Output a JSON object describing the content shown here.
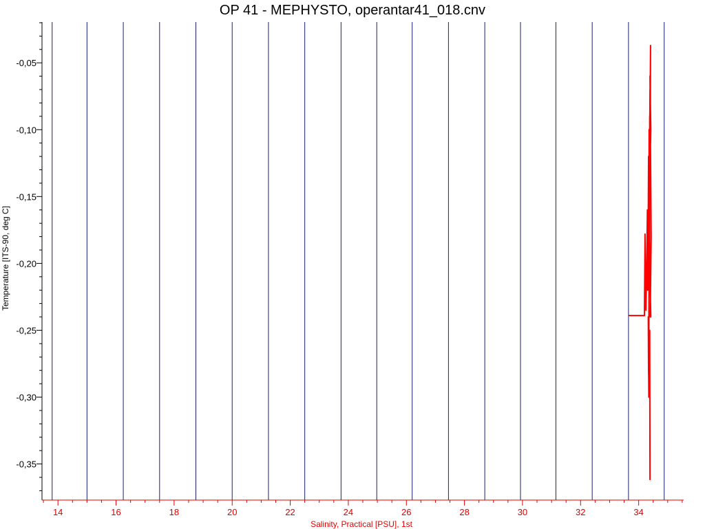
{
  "chart_data": {
    "type": "line",
    "title": "OP 41 - MEPHYSTO, operantar41_018.cnv",
    "xlabel": "Salinity, Practical [PSU], 1st",
    "ylabel": "Temperature [ITS-90, deg C]",
    "xlim": [
      13.45,
      35.55
    ],
    "ylim": [
      -0.377,
      -0.0195
    ],
    "xticks": [
      14,
      16,
      18,
      20,
      22,
      24,
      26,
      28,
      30,
      32,
      34
    ],
    "xtick_labels": [
      "14",
      "16",
      "18",
      "20",
      "22",
      "24",
      "26",
      "28",
      "30",
      "32",
      "34"
    ],
    "yticks": [
      -0.05,
      -0.1,
      -0.15,
      -0.2,
      -0.25,
      -0.3,
      -0.35
    ],
    "ytick_labels": [
      "-0,05",
      "-0,10",
      "-0,15",
      "-0,20",
      "-0,25",
      "-0,30",
      "-0,35"
    ],
    "vertical_lines_x": [
      13.8,
      15.0,
      16.25,
      17.5,
      18.75,
      20.0,
      21.25,
      22.5,
      23.75,
      24.98,
      26.2,
      27.45,
      28.7,
      29.93,
      31.15,
      32.4,
      33.65,
      34.88
    ],
    "grid": false,
    "line_colors": {
      "vertical_lines": "#1a1f6e",
      "series": "#ff0000",
      "x_axis": "#e00000",
      "y_axis": "#000000"
    },
    "series": [
      {
        "x": [
          33.65,
          34.2,
          34.2,
          34.22,
          34.25,
          34.28,
          34.3,
          34.31,
          34.33,
          34.34,
          34.35,
          34.36,
          34.37,
          34.38,
          34.36,
          34.39,
          34.4,
          34.38,
          34.41,
          34.4,
          34.42,
          34.39,
          34.43,
          34.41,
          34.4,
          34.42,
          34.38,
          34.37,
          34.35,
          34.36,
          34.34,
          34.33,
          34.35,
          34.36,
          34.37,
          34.38,
          34.39
        ],
        "y": [
          -0.239,
          -0.239,
          -0.234,
          -0.178,
          -0.235,
          -0.2,
          -0.16,
          -0.22,
          -0.165,
          -0.12,
          -0.2,
          -0.1,
          -0.15,
          -0.09,
          -0.18,
          -0.07,
          -0.15,
          -0.12,
          -0.037,
          -0.12,
          -0.1,
          -0.06,
          -0.18,
          -0.22,
          -0.24,
          -0.24,
          -0.2,
          -0.12,
          -0.26,
          -0.3,
          -0.28,
          -0.24,
          -0.3,
          -0.25,
          -0.28,
          -0.25,
          -0.362
        ]
      }
    ]
  }
}
